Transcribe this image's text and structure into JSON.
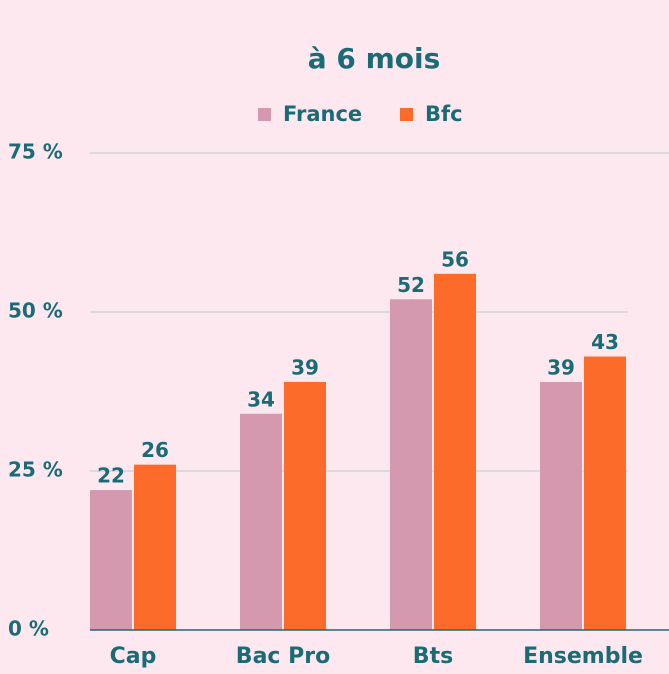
{
  "chart_data": {
    "type": "bar",
    "title": "à 6 mois",
    "categories": [
      "Cap",
      "Bac Pro",
      "Bts",
      "Ensemble"
    ],
    "series": [
      {
        "name": "France",
        "color": "#d499ae",
        "values": [
          22,
          34,
          52,
          39
        ]
      },
      {
        "name": "Bfc",
        "color": "#fd6b2a",
        "values": [
          26,
          39,
          56,
          43
        ]
      }
    ],
    "ylim": [
      0,
      75
    ],
    "yticks": [
      {
        "value": 0,
        "label": "0 %"
      },
      {
        "value": 25,
        "label": "25 %"
      },
      {
        "value": 50,
        "label": "50 %"
      },
      {
        "value": 75,
        "label": "75 %"
      }
    ],
    "grid": true,
    "legend": "top"
  }
}
